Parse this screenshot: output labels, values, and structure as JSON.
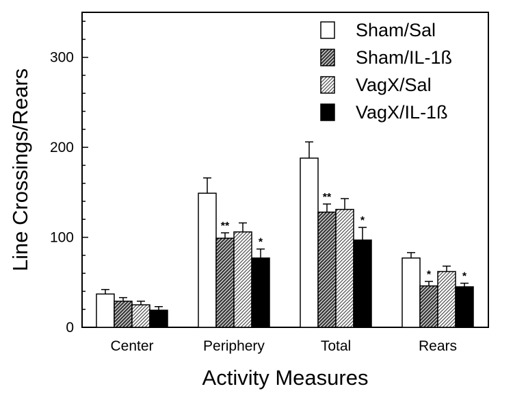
{
  "chart_data": {
    "type": "bar",
    "title": "",
    "xlabel": "Activity Measures",
    "ylabel": "Line Crossings/Rears",
    "ylim": [
      0,
      350
    ],
    "yticks": [
      0,
      100,
      200,
      300
    ],
    "categories": [
      "Center",
      "Periphery",
      "Total",
      "Rears"
    ],
    "legend_position": "top-right",
    "series": [
      {
        "name": "Sham/Sal",
        "fill": "white",
        "values": [
          37,
          149,
          188,
          77
        ],
        "errors": [
          5,
          17,
          18,
          6
        ],
        "significance": [
          "",
          "",
          "",
          ""
        ]
      },
      {
        "name": "Sham/IL-1ß",
        "fill": "dense-hatch",
        "values": [
          29,
          99,
          128,
          46
        ],
        "errors": [
          4,
          6,
          9,
          5
        ],
        "significance": [
          "",
          "**",
          "**",
          "*"
        ]
      },
      {
        "name": "VagX/Sal",
        "fill": "light-hatch",
        "values": [
          25,
          106,
          131,
          62
        ],
        "errors": [
          4,
          10,
          12,
          6
        ],
        "significance": [
          "",
          "",
          "",
          ""
        ]
      },
      {
        "name": "VagX/IL-1ß",
        "fill": "black",
        "values": [
          19,
          77,
          97,
          45
        ],
        "errors": [
          4,
          10,
          14,
          4
        ],
        "significance": [
          "",
          "*",
          "*",
          "*"
        ]
      }
    ]
  }
}
